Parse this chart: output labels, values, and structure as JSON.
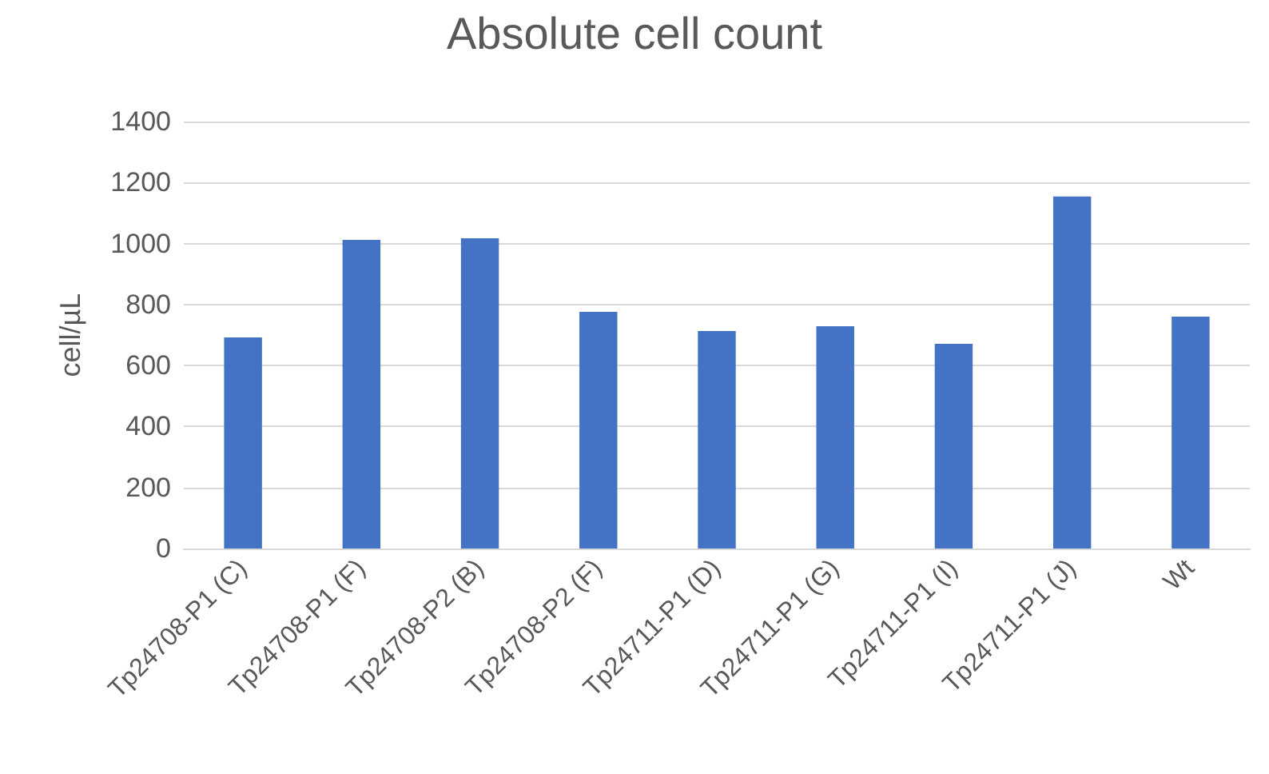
{
  "chart_data": {
    "type": "bar",
    "title": "Absolute cell count",
    "ylabel": "cell/µL",
    "categories": [
      "Tp24708-P1 (C)",
      "Tp24708-P1 (F)",
      "Tp24708-P2 (B)",
      "Tp24708-P2 (F)",
      "Tp24711-P1 (D)",
      "Tp24711-P1 (G)",
      "Tp24711-P1 (I)",
      "Tp24711-P1 (J)",
      "Wt"
    ],
    "values": [
      692,
      1012,
      1017,
      776,
      713,
      729,
      671,
      1154,
      760
    ],
    "color": "#4472c4",
    "ylim": [
      0,
      1400
    ],
    "yticks": [
      0,
      200,
      400,
      600,
      800,
      1000,
      1200,
      1400
    ],
    "grid": "y"
  }
}
